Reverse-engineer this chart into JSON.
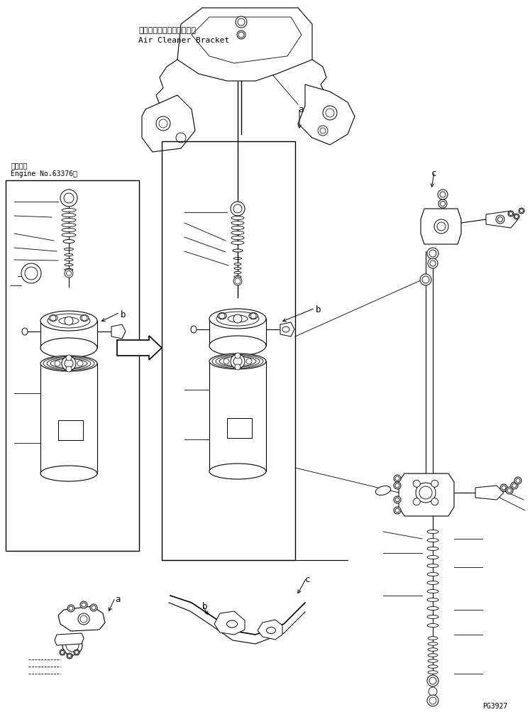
{
  "bg_color": "#ffffff",
  "line_color": "#000000",
  "page_id": "PG3927",
  "label_top_jp": "エアークリーナブラケット",
  "label_top_en": "Air Cleaner Bracket",
  "label_engine_jp": "適用号機",
  "label_engine_en": "Engine No.63376～",
  "label_a": "a",
  "label_b": "b",
  "label_c": "c"
}
